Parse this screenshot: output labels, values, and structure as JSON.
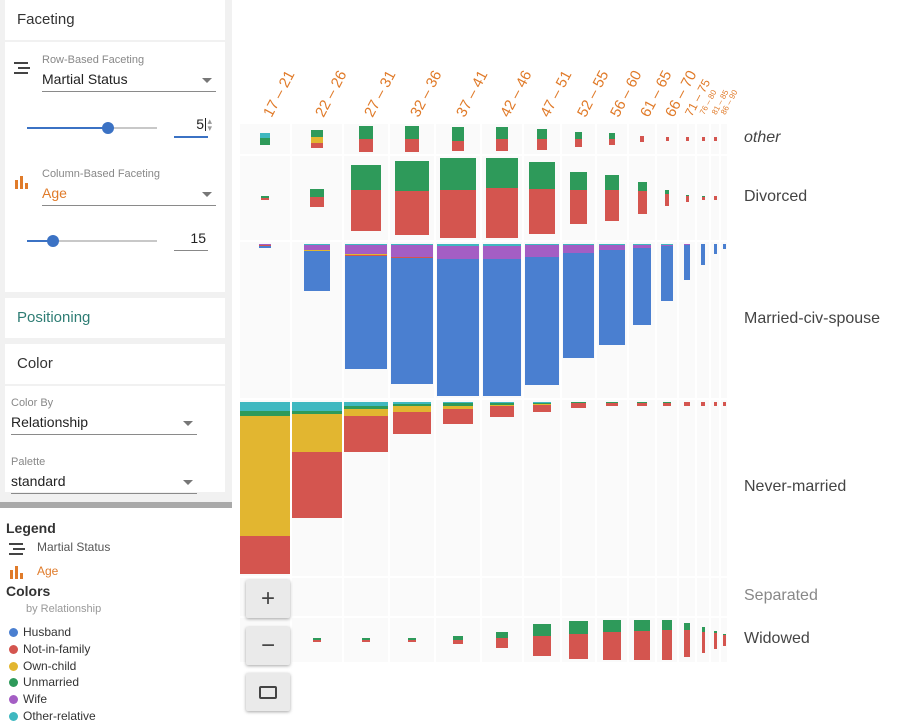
{
  "faceting": {
    "title": "Faceting",
    "row": {
      "label": "Row-Based Faceting",
      "value": "Martial Status",
      "count": "5",
      "slider_fraction": 0.62
    },
    "column": {
      "label": "Column-Based Faceting",
      "value": "Age",
      "count": "15",
      "slider_fraction": 0.2
    }
  },
  "positioning": {
    "title": "Positioning"
  },
  "color": {
    "title": "Color",
    "color_by_label": "Color By",
    "color_by_value": "Relationship",
    "palette_label": "Palette",
    "palette_value": "standard"
  },
  "legend": {
    "title": "Legend",
    "row_facet": "Martial Status",
    "column_facet": "Age",
    "colors_title": "Colors",
    "colors_sub": "by Relationship",
    "items": [
      {
        "label": "Husband",
        "color": "#4a7fd0"
      },
      {
        "label": "Not-in-family",
        "color": "#d4554f"
      },
      {
        "label": "Own-child",
        "color": "#e2b630"
      },
      {
        "label": "Unmarried",
        "color": "#2e9a5a"
      },
      {
        "label": "Wife",
        "color": "#a45ec4"
      },
      {
        "label": "Other-relative",
        "color": "#3fb8c0"
      }
    ]
  },
  "columns": [
    "17 – 21",
    "22 – 26",
    "27 – 31",
    "32 – 36",
    "37 – 41",
    "42 – 46",
    "47 – 51",
    "52 – 55",
    "56 – 60",
    "61 – 65",
    "66 – 70",
    "71 – 75",
    "76 – 80",
    "81 – 85",
    "86 – 90"
  ],
  "rows": [
    "other",
    "Divorced",
    "Married-civ-spouse",
    "Never-married",
    "Separated",
    "Widowed"
  ],
  "zoom": {
    "in": "+",
    "out": "−"
  },
  "chart_data": {
    "type": "bar",
    "title": "",
    "row_facet": "Martial Status",
    "column_facet": "Age",
    "color_by": "Relationship",
    "categories": [
      "17 – 21",
      "22 – 26",
      "27 – 31",
      "32 – 36",
      "37 – 41",
      "42 – 46",
      "47 – 51",
      "52 – 55",
      "56 – 60",
      "61 – 65",
      "66 – 70",
      "71 – 75",
      "76 – 80",
      "81 – 85",
      "86 – 90"
    ],
    "facets": [
      {
        "row": "other",
        "totals": [
          4,
          6,
          10,
          10,
          8,
          8,
          7,
          5,
          4,
          2,
          1,
          1,
          1,
          1,
          0
        ],
        "mix": [
          [
            0,
            0,
            0,
            0.6,
            0,
            0.4
          ],
          [
            0,
            0.3,
            0.3,
            0.4,
            0,
            0
          ],
          [
            0,
            0.5,
            0,
            0.5,
            0,
            0
          ],
          [
            0,
            0.5,
            0,
            0.5,
            0,
            0
          ],
          [
            0,
            0.4,
            0,
            0.6,
            0,
            0
          ],
          [
            0,
            0.5,
            0,
            0.5,
            0,
            0
          ],
          [
            0,
            0.5,
            0,
            0.5,
            0,
            0
          ],
          [
            0,
            0.5,
            0,
            0.5,
            0,
            0
          ],
          [
            0,
            0.5,
            0,
            0.5,
            0,
            0
          ],
          [
            0,
            1,
            0,
            0,
            0,
            0
          ],
          [
            0,
            1,
            0,
            0,
            0,
            0
          ],
          [
            0,
            1,
            0,
            0,
            0,
            0
          ],
          [
            0,
            1,
            0,
            0,
            0,
            0
          ],
          [
            0,
            1,
            0,
            0,
            0,
            0
          ],
          [
            0,
            0,
            0,
            0,
            0,
            0
          ]
        ]
      },
      {
        "row": "Divorced",
        "totals": [
          1,
          8,
          28,
          32,
          36,
          36,
          31,
          22,
          20,
          14,
          7,
          3,
          2,
          1,
          0
        ],
        "mix": [
          [
            0,
            0.5,
            0,
            0.5,
            0,
            0
          ],
          [
            0,
            0.55,
            0,
            0.45,
            0,
            0
          ],
          [
            0,
            0.62,
            0,
            0.38,
            0,
            0
          ],
          [
            0,
            0.6,
            0,
            0.4,
            0,
            0
          ],
          [
            0,
            0.6,
            0,
            0.4,
            0,
            0
          ],
          [
            0,
            0.62,
            0,
            0.38,
            0,
            0
          ],
          [
            0,
            0.62,
            0,
            0.38,
            0,
            0
          ],
          [
            0,
            0.65,
            0,
            0.35,
            0,
            0
          ],
          [
            0,
            0.68,
            0,
            0.32,
            0,
            0
          ],
          [
            0,
            0.7,
            0,
            0.3,
            0,
            0
          ],
          [
            0,
            0.72,
            0,
            0.28,
            0,
            0
          ],
          [
            0,
            0.75,
            0,
            0.25,
            0,
            0
          ],
          [
            0,
            0.8,
            0,
            0.2,
            0,
            0
          ],
          [
            0,
            1,
            0,
            0,
            0,
            0
          ],
          [
            0,
            0,
            0,
            0,
            0,
            0
          ]
        ]
      },
      {
        "row": "Married-civ-spouse",
        "totals": [
          2,
          45,
          120,
          135,
          150,
          147,
          136,
          110,
          97,
          78,
          55,
          35,
          20,
          10,
          5
        ],
        "mix": [
          [
            0.6,
            0.1,
            0.1,
            0,
            0.1,
            0.1
          ],
          [
            0.85,
            0.01,
            0.01,
            0,
            0.1,
            0.03
          ],
          [
            0.9,
            0.01,
            0.01,
            0,
            0.07,
            0.01
          ],
          [
            0.9,
            0.01,
            0,
            0,
            0.08,
            0.01
          ],
          [
            0.9,
            0,
            0,
            0,
            0.09,
            0.01
          ],
          [
            0.9,
            0,
            0,
            0,
            0.09,
            0.01
          ],
          [
            0.91,
            0,
            0,
            0,
            0.08,
            0.01
          ],
          [
            0.92,
            0,
            0,
            0,
            0.07,
            0.01
          ],
          [
            0.94,
            0,
            0,
            0,
            0.05,
            0.01
          ],
          [
            0.95,
            0,
            0,
            0,
            0.04,
            0.01
          ],
          [
            0.96,
            0,
            0,
            0,
            0.03,
            0.01
          ],
          [
            0.97,
            0,
            0,
            0,
            0.02,
            0.01
          ],
          [
            0.98,
            0,
            0,
            0,
            0.02,
            0
          ],
          [
            1,
            0,
            0,
            0,
            0,
            0
          ],
          [
            1,
            0,
            0,
            0,
            0,
            0
          ]
        ]
      },
      {
        "row": "Never-married",
        "totals": [
          440,
          290,
          125,
          80,
          55,
          37,
          25,
          14,
          10,
          7,
          4,
          3,
          2,
          1,
          1
        ],
        "mix": [
          [
            0,
            0.22,
            0.7,
            0.03,
            0,
            0.05
          ],
          [
            0,
            0.57,
            0.33,
            0.02,
            0,
            0.08
          ],
          [
            0,
            0.72,
            0.15,
            0.05,
            0,
            0.08
          ],
          [
            0,
            0.7,
            0.18,
            0.07,
            0,
            0.05
          ],
          [
            0,
            0.7,
            0.12,
            0.13,
            0,
            0.05
          ],
          [
            0,
            0.72,
            0.1,
            0.13,
            0,
            0.05
          ],
          [
            0,
            0.7,
            0.08,
            0.17,
            0,
            0.05
          ],
          [
            0,
            0.75,
            0.05,
            0.15,
            0,
            0.05
          ],
          [
            0,
            0.78,
            0,
            0.17,
            0,
            0.05
          ],
          [
            0,
            0.8,
            0,
            0.15,
            0,
            0.05
          ],
          [
            0,
            0.85,
            0,
            0.15,
            0,
            0
          ],
          [
            0,
            0.9,
            0,
            0.1,
            0,
            0
          ],
          [
            0,
            1,
            0,
            0,
            0,
            0
          ],
          [
            0,
            1,
            0,
            0,
            0,
            0
          ],
          [
            0,
            1,
            0,
            0,
            0,
            0
          ]
        ]
      },
      {
        "row": "Separated",
        "totals": [
          0,
          0,
          0,
          0,
          0,
          0,
          0,
          0,
          0,
          0,
          0,
          0,
          0,
          0,
          0
        ],
        "mix": []
      },
      {
        "row": "Widowed",
        "totals": [
          0,
          1,
          2,
          2,
          5,
          10,
          20,
          24,
          26,
          28,
          26,
          22,
          16,
          12,
          8
        ],
        "mix": [
          [
            0,
            0,
            0,
            0,
            0,
            0
          ],
          [
            0,
            0.5,
            0,
            0.5,
            0,
            0
          ],
          [
            0,
            0.5,
            0,
            0.5,
            0,
            0
          ],
          [
            0,
            0.5,
            0,
            0.5,
            0,
            0
          ],
          [
            0,
            0.55,
            0,
            0.45,
            0,
            0
          ],
          [
            0,
            0.6,
            0,
            0.4,
            0,
            0
          ],
          [
            0,
            0.62,
            0,
            0.38,
            0,
            0
          ],
          [
            0,
            0.65,
            0,
            0.35,
            0,
            0
          ],
          [
            0,
            0.7,
            0,
            0.3,
            0,
            0
          ],
          [
            0,
            0.72,
            0,
            0.28,
            0,
            0
          ],
          [
            0,
            0.75,
            0,
            0.25,
            0,
            0
          ],
          [
            0,
            0.8,
            0,
            0.2,
            0,
            0
          ],
          [
            0,
            0.82,
            0,
            0.18,
            0,
            0
          ],
          [
            0,
            0.85,
            0,
            0.15,
            0,
            0
          ],
          [
            0,
            0.9,
            0,
            0.1,
            0,
            0
          ]
        ]
      }
    ]
  }
}
